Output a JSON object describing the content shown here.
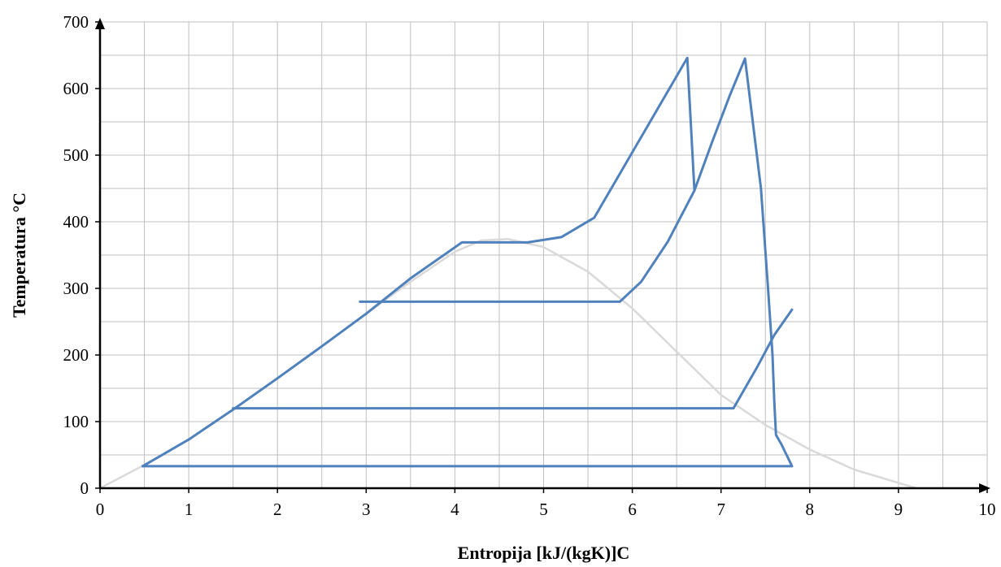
{
  "chart_data": {
    "type": "line",
    "title": "",
    "xlabel": "Entropija [kJ/(kgK)]C",
    "ylabel": "Temperatura °C",
    "xlim": [
      0,
      10
    ],
    "ylim": [
      0,
      700
    ],
    "x_major_ticks": [
      0,
      1,
      2,
      3,
      4,
      5,
      6,
      7,
      8,
      9,
      10
    ],
    "y_major_ticks": [
      0,
      100,
      200,
      300,
      400,
      500,
      600,
      700
    ],
    "x_minor_step": 0.5,
    "y_minor_step": 50,
    "grid": true,
    "legend": "none",
    "colors": {
      "saturation_dome": "#d9d9d9",
      "cycle": "#4f81bd",
      "grid": "#bfbfbf",
      "axis": "#000000"
    },
    "series": [
      {
        "role": "saturation-dome",
        "points": [
          [
            0,
            0
          ],
          [
            0.5,
            35
          ],
          [
            1.0,
            73
          ],
          [
            1.5,
            118
          ],
          [
            2.0,
            165
          ],
          [
            2.5,
            213
          ],
          [
            3.0,
            262
          ],
          [
            3.5,
            310
          ],
          [
            4.0,
            355
          ],
          [
            4.3,
            372
          ],
          [
            4.6,
            374
          ],
          [
            5.0,
            362
          ],
          [
            5.5,
            325
          ],
          [
            6.0,
            270
          ],
          [
            6.5,
            205
          ],
          [
            7.0,
            140
          ],
          [
            7.5,
            95
          ],
          [
            8.0,
            58
          ],
          [
            8.5,
            28
          ],
          [
            9.0,
            8
          ],
          [
            9.2,
            0
          ]
        ]
      },
      {
        "role": "cycle",
        "points": [
          [
            0.48,
            33
          ],
          [
            1.0,
            73
          ],
          [
            1.5,
            118
          ],
          [
            2.0,
            165
          ],
          [
            2.5,
            213
          ],
          [
            3.0,
            262
          ],
          [
            3.5,
            315
          ],
          [
            4.08,
            369
          ],
          [
            4.82,
            369
          ],
          [
            5.2,
            377
          ],
          [
            5.57,
            406
          ],
          [
            6.62,
            646
          ],
          [
            6.7,
            447
          ]
        ]
      },
      {
        "role": "cycle",
        "points": [
          [
            6.7,
            447
          ],
          [
            6.9,
            520
          ],
          [
            7.1,
            590
          ],
          [
            7.27,
            645
          ],
          [
            7.45,
            450
          ],
          [
            7.53,
            300
          ],
          [
            7.58,
            200
          ],
          [
            7.6,
            130
          ],
          [
            7.62,
            80
          ],
          [
            7.68,
            66
          ],
          [
            7.8,
            33
          ],
          [
            0.48,
            33
          ]
        ]
      },
      {
        "role": "cycle",
        "points": [
          [
            2.93,
            280
          ],
          [
            5.86,
            280
          ],
          [
            6.1,
            310
          ],
          [
            6.4,
            370
          ],
          [
            6.7,
            447
          ]
        ]
      },
      {
        "role": "cycle",
        "points": [
          [
            1.5,
            120
          ],
          [
            7.14,
            120
          ],
          [
            7.4,
            180
          ],
          [
            7.6,
            230
          ],
          [
            7.8,
            268
          ]
        ]
      }
    ]
  }
}
